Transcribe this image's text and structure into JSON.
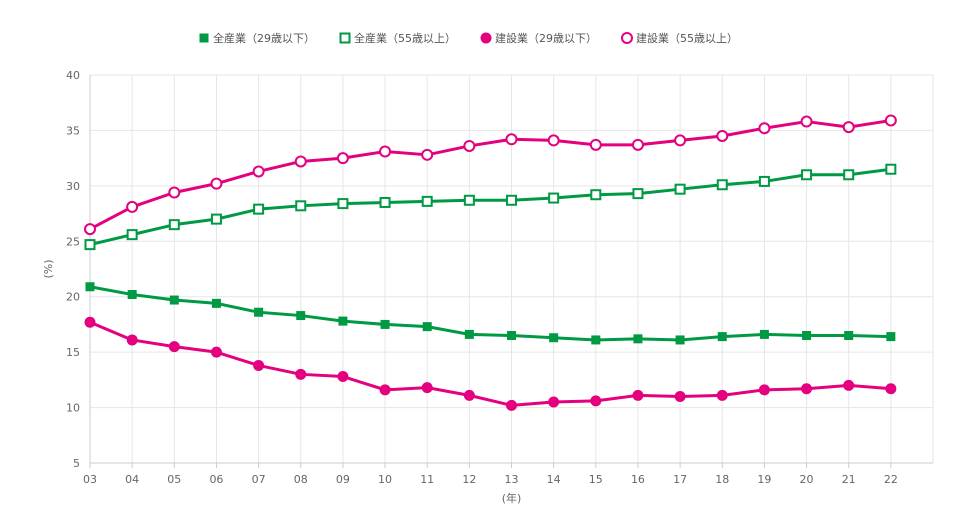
{
  "chart_data": {
    "type": "line",
    "title": "",
    "xlabel": "(年)",
    "ylabel": "(%)",
    "ylim": [
      5,
      40
    ],
    "yticks": [
      5,
      10,
      15,
      20,
      25,
      30,
      35,
      40
    ],
    "x": [
      "03",
      "04",
      "05",
      "06",
      "07",
      "08",
      "09",
      "10",
      "11",
      "12",
      "13",
      "14",
      "15",
      "16",
      "17",
      "18",
      "19",
      "20",
      "21",
      "22"
    ],
    "grid": true,
    "legend_position": "top-center",
    "series": [
      {
        "name": "全産業（29歳以下）",
        "color": "#009944",
        "marker": "filled-square",
        "values": [
          20.9,
          20.2,
          19.7,
          19.4,
          18.6,
          18.3,
          17.8,
          17.5,
          17.3,
          16.6,
          16.5,
          16.3,
          16.1,
          16.2,
          16.1,
          16.4,
          16.6,
          16.5,
          16.5,
          16.4
        ]
      },
      {
        "name": "全産業（55歳以上）",
        "color": "#009944",
        "marker": "open-square",
        "values": [
          24.7,
          25.6,
          26.5,
          27.0,
          27.9,
          28.2,
          28.4,
          28.5,
          28.6,
          28.7,
          28.7,
          28.9,
          29.2,
          29.3,
          29.7,
          30.1,
          30.4,
          31.0,
          31.0,
          31.5
        ]
      },
      {
        "name": "建設業（29歳以下）",
        "color": "#e4007f",
        "marker": "filled-circle",
        "values": [
          17.7,
          16.1,
          15.5,
          15.0,
          13.8,
          13.0,
          12.8,
          11.6,
          11.8,
          11.1,
          10.2,
          10.5,
          10.6,
          11.1,
          11.0,
          11.1,
          11.6,
          11.7,
          12.0,
          11.7
        ]
      },
      {
        "name": "建設業（55歳以上）",
        "color": "#e4007f",
        "marker": "open-circle",
        "values": [
          26.1,
          28.1,
          29.4,
          30.2,
          31.3,
          32.2,
          32.5,
          33.1,
          32.8,
          33.6,
          34.2,
          34.1,
          33.7,
          33.7,
          34.1,
          34.5,
          35.2,
          35.8,
          35.3,
          35.9
        ]
      }
    ]
  }
}
